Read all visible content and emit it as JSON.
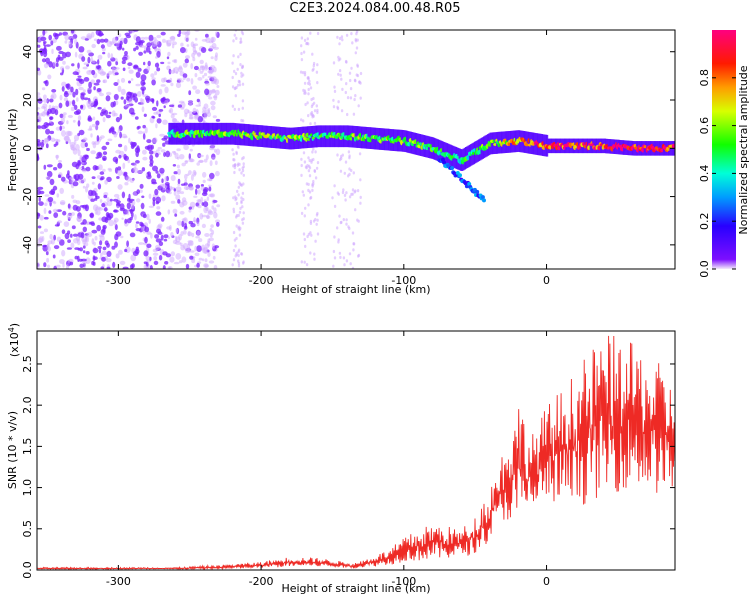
{
  "title": "C2E3.2024.084.00.48.R05",
  "colors": {
    "line": "#ee2a25",
    "dots": "#7a1fff",
    "dots_faint": "#cfa8ff"
  },
  "chart_data": [
    {
      "type": "heatmap",
      "xlabel": "Height of straight line (km)",
      "ylabel": "Frequency (Hz)",
      "xlim": [
        -357,
        90
      ],
      "ylim": [
        -50,
        49
      ],
      "xticks": [
        -300,
        -200,
        -100,
        0
      ],
      "xtick_labels": [
        "-300",
        "-200",
        "-100",
        "0"
      ],
      "yticks": [
        -40,
        -20,
        0,
        20,
        40
      ],
      "ytick_labels": [
        "-40",
        "-20",
        "0",
        "20",
        "40"
      ],
      "colorbar": {
        "label": "Normalized spectral amplitude",
        "range": [
          0,
          1
        ],
        "ticks": [
          0.0,
          0.2,
          0.4,
          0.6,
          0.8
        ],
        "tick_labels": [
          "0.0",
          "0.2",
          "0.4",
          "0.6",
          "0.8"
        ]
      },
      "ridge": {
        "x": [
          -265,
          -240,
          -220,
          -200,
          -180,
          -160,
          -140,
          -120,
          -100,
          -80,
          -60,
          -40,
          -20,
          0,
          20,
          40,
          60,
          80,
          90
        ],
        "y": [
          6,
          6,
          6,
          5,
          4,
          5,
          5,
          4,
          3,
          0,
          -5,
          2,
          3,
          1,
          1,
          1,
          0,
          0,
          0
        ],
        "amplitude": [
          0.5,
          0.55,
          0.55,
          0.6,
          0.55,
          0.5,
          0.55,
          0.55,
          0.55,
          0.5,
          0.45,
          0.55,
          0.7,
          0.9,
          0.9,
          0.9,
          0.95,
          0.95,
          0.95
        ]
      }
    },
    {
      "type": "line",
      "xlabel": "Height of straight line (km)",
      "ylabel": "SNR (10 * v/v)",
      "scale_label": "(x10",
      "scale_exponent": "4",
      "xlim": [
        -357,
        90
      ],
      "ylim": [
        0,
        29000
      ],
      "xticks": [
        -300,
        -200,
        -100,
        0
      ],
      "xtick_labels": [
        "-300",
        "-200",
        "-100",
        "0"
      ],
      "yticks": [
        0,
        5000,
        10000,
        15000,
        20000,
        25000
      ],
      "ytick_labels": [
        "0.0",
        "0.5",
        "1.0",
        "1.5",
        "2.0",
        "2.5"
      ],
      "envelope": {
        "x": [
          -357,
          -260,
          -230,
          -200,
          -180,
          -160,
          -135,
          -110,
          -100,
          -80,
          -60,
          -50,
          -40,
          -30,
          -20,
          -10,
          0,
          20,
          40,
          60,
          80,
          90
        ],
        "low": [
          100,
          100,
          100,
          200,
          400,
          400,
          200,
          600,
          1000,
          1200,
          1500,
          2000,
          3500,
          6000,
          5000,
          7000,
          8000,
          7500,
          9000,
          10000,
          9000,
          9500
        ],
        "high": [
          300,
          300,
          600,
          1000,
          1600,
          1500,
          800,
          2500,
          4000,
          5700,
          5000,
          6500,
          10000,
          15000,
          21000,
          16500,
          20000,
          24000,
          29000,
          27500,
          25000,
          22000
        ]
      }
    }
  ]
}
